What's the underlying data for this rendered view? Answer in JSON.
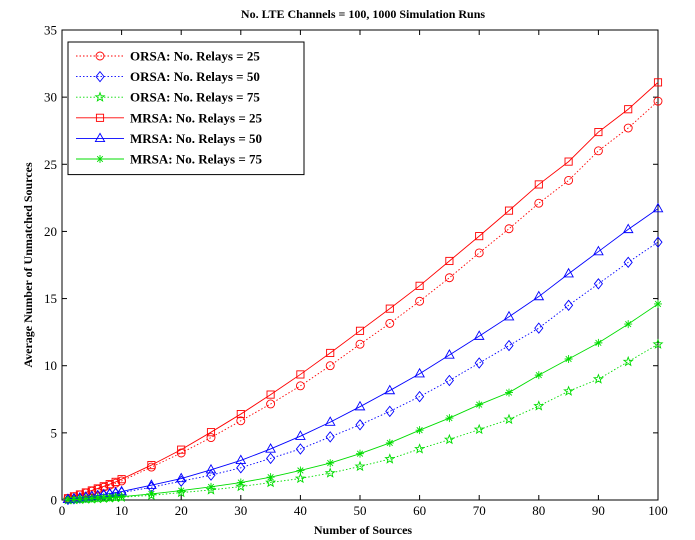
{
  "chart_data": {
    "type": "line",
    "title": "No. LTE Channels = 100, 1000 Simulation Runs",
    "xlabel": "Number of Sources",
    "ylabel": "Average Number of Unmatched Sources",
    "xlim": [
      0,
      100
    ],
    "ylim": [
      0,
      35
    ],
    "xticks": [
      0,
      10,
      20,
      30,
      40,
      50,
      60,
      70,
      80,
      90,
      100
    ],
    "yticks": [
      0,
      5,
      10,
      15,
      20,
      25,
      30,
      35
    ],
    "grid": false,
    "legend_position": "top-left",
    "x": [
      1,
      2,
      3,
      4,
      5,
      6,
      7,
      8,
      9,
      10,
      15,
      20,
      25,
      30,
      35,
      40,
      45,
      50,
      55,
      60,
      65,
      70,
      75,
      80,
      85,
      90,
      95,
      100
    ],
    "series": [
      {
        "name": "ORSA: No. Relays = 25",
        "color": "#ff0000",
        "line_style": "dotted",
        "marker": "circle",
        "values": [
          0.12,
          0.25,
          0.38,
          0.52,
          0.66,
          0.8,
          0.95,
          1.1,
          1.25,
          1.42,
          2.45,
          3.5,
          4.65,
          5.9,
          7.15,
          8.5,
          10.0,
          11.6,
          13.15,
          14.8,
          16.55,
          18.4,
          20.2,
          22.1,
          23.8,
          26.0,
          27.7,
          29.7
        ]
      },
      {
        "name": "ORSA: No. Relays = 50",
        "color": "#0000ff",
        "line_style": "dotted",
        "marker": "diamond",
        "values": [
          0.04,
          0.09,
          0.14,
          0.19,
          0.24,
          0.3,
          0.36,
          0.42,
          0.48,
          0.55,
          0.95,
          1.4,
          1.85,
          2.4,
          3.1,
          3.8,
          4.7,
          5.6,
          6.6,
          7.7,
          8.9,
          10.2,
          11.5,
          12.8,
          14.5,
          16.1,
          17.7,
          19.2
        ]
      },
      {
        "name": "ORSA: No. Relays = 75",
        "color": "#00dd00",
        "line_style": "dotted",
        "marker": "star",
        "values": [
          0.01,
          0.02,
          0.04,
          0.06,
          0.08,
          0.1,
          0.12,
          0.15,
          0.18,
          0.2,
          0.35,
          0.55,
          0.75,
          1.0,
          1.3,
          1.6,
          2.0,
          2.5,
          3.05,
          3.8,
          4.5,
          5.25,
          6.0,
          7.0,
          8.1,
          9.0,
          10.3,
          11.6
        ]
      },
      {
        "name": "MRSA: No. Relays = 25",
        "color": "#ff0000",
        "line_style": "solid",
        "marker": "square",
        "values": [
          0.13,
          0.27,
          0.41,
          0.56,
          0.71,
          0.86,
          1.02,
          1.18,
          1.35,
          1.55,
          2.6,
          3.75,
          5.05,
          6.4,
          7.85,
          9.35,
          10.95,
          12.6,
          14.25,
          15.95,
          17.8,
          19.65,
          21.55,
          23.5,
          25.2,
          27.4,
          29.1,
          31.1
        ]
      },
      {
        "name": "MRSA: No. Relays = 50",
        "color": "#0000ff",
        "line_style": "solid",
        "marker": "triangle",
        "values": [
          0.05,
          0.1,
          0.16,
          0.22,
          0.28,
          0.34,
          0.41,
          0.48,
          0.55,
          0.63,
          1.1,
          1.6,
          2.25,
          2.95,
          3.8,
          4.75,
          5.8,
          6.95,
          8.15,
          9.4,
          10.8,
          12.2,
          13.65,
          15.15,
          16.85,
          18.5,
          20.15,
          21.7
        ]
      },
      {
        "name": "MRSA: No. Relays = 75",
        "color": "#00dd00",
        "line_style": "solid",
        "marker": "asterisk",
        "values": [
          0.02,
          0.04,
          0.06,
          0.08,
          0.1,
          0.13,
          0.16,
          0.19,
          0.22,
          0.25,
          0.45,
          0.7,
          0.98,
          1.3,
          1.7,
          2.2,
          2.75,
          3.45,
          4.25,
          5.2,
          6.1,
          7.1,
          8.0,
          9.3,
          10.5,
          11.7,
          13.1,
          14.6
        ]
      }
    ]
  }
}
